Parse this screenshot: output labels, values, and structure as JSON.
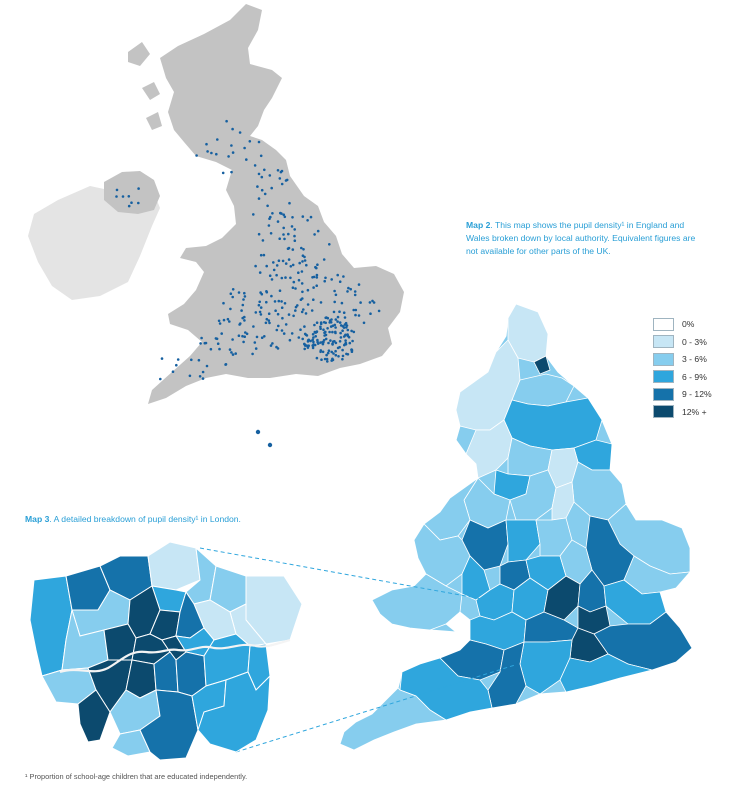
{
  "map2_caption": {
    "label": "Map 2",
    "text": ". This map shows the pupil density¹ in England and Wales broken down by local authority. Equivalent figures are not available for other parts of the UK."
  },
  "map3_caption": {
    "label": "Map 3",
    "text": ". A detailed breakdown of pupil density¹ in London."
  },
  "legend": [
    {
      "label": "0%",
      "color": "#ffffff"
    },
    {
      "label": "0 - 3%",
      "color": "#c7e6f5"
    },
    {
      "label": "3 - 6%",
      "color": "#86cdee"
    },
    {
      "label": "6 - 9%",
      "color": "#2fa6dd"
    },
    {
      "label": "9 - 12%",
      "color": "#1572aa"
    },
    {
      "label": "12% +",
      "color": "#0c4a6e"
    }
  ],
  "footnote": "¹ Proportion of school-age children that are educated independently.",
  "colors": {
    "land_grey": "#c3c3c3",
    "ireland_grey": "#e4e4e4",
    "school_dot": "#1660a0",
    "border": "#ffffff"
  }
}
